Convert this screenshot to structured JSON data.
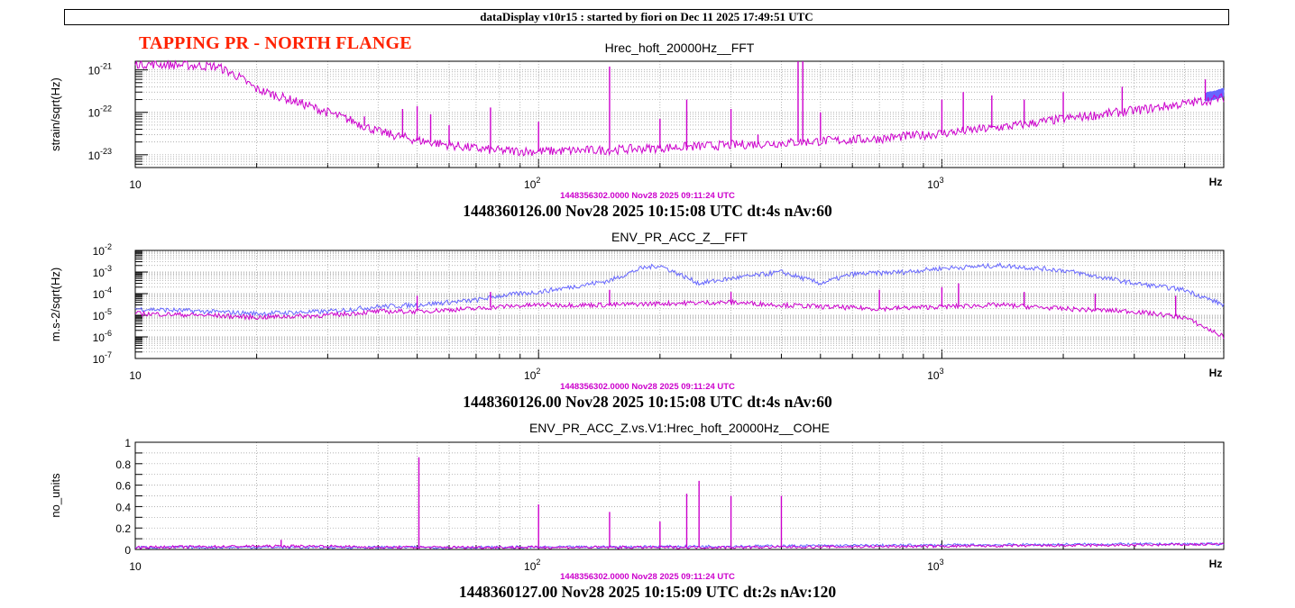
{
  "banner": "dataDisplay v10r15 : started by fiori on Dec 11 2025 17:49:51 UTC",
  "tag": {
    "text": "TAPPING PR - NORTH FLANGE",
    "color": "#ff2200"
  },
  "colors": {
    "reference": "#cc00cc",
    "current": "#6666ff",
    "grid": "#999999"
  },
  "chart_data": [
    {
      "type": "line",
      "title": "Hrec_hoft_20000Hz__FFT",
      "ylabel": "strain/sqrt(Hz)",
      "xunit": "Hz",
      "xscale": "log",
      "yscale": "log",
      "xlim": [
        10,
        5000
      ],
      "ylim": [
        5e-24,
        1.6e-21
      ],
      "grid": true,
      "xticks": [
        {
          "value": 10,
          "base": "10",
          "exp": ""
        },
        {
          "value": 100,
          "base": "10",
          "exp": "2"
        },
        {
          "value": 1000,
          "base": "10",
          "exp": "3"
        }
      ],
      "yticks": [
        {
          "value": 1e-21,
          "base": "10",
          "exp": "-21"
        },
        {
          "value": 1e-22,
          "base": "10",
          "exp": "-22"
        },
        {
          "value": 1e-23,
          "base": "10",
          "exp": "-23"
        }
      ],
      "reference_label": "1448356302.0000 Nov28 2025 09:11:24 UTC",
      "footer": "1448360126.00 Nov28 2025 10:15:08 UTC dt:4s nAv:60",
      "series": [
        {
          "role": "reference",
          "x": [
            10,
            13,
            16,
            18,
            20,
            25,
            30,
            35,
            40,
            50,
            60,
            70,
            80,
            100,
            120,
            150,
            200,
            300,
            400,
            500,
            700,
            1000,
            1500,
            2000,
            3000,
            4000,
            5000
          ],
          "y": [
            1.4e-21,
            1.3e-21,
            1.2e-21,
            7e-22,
            3.5e-22,
            1.8e-22,
            1e-22,
            6e-23,
            3.5e-23,
            2.2e-23,
            1.7e-23,
            1.4e-23,
            1.25e-23,
            1.2e-23,
            1.25e-23,
            1.3e-23,
            1.45e-23,
            1.7e-23,
            1.9e-23,
            2.1e-23,
            2.4e-23,
            3.2e-23,
            4.8e-23,
            7e-23,
            1.1e-22,
            1.6e-22,
            2.2e-22
          ],
          "peaks": [
            [
              37,
              8e-23
            ],
            [
              46,
              1.2e-22
            ],
            [
              50,
              1.4e-22
            ],
            [
              54,
              9e-23
            ],
            [
              60,
              5e-23
            ],
            [
              76,
              1.3e-22
            ],
            [
              100,
              6e-23
            ],
            [
              150,
              1.2e-21
            ],
            [
              200,
              7e-23
            ],
            [
              233,
              2e-22
            ],
            [
              300,
              1.2e-22
            ],
            [
              350,
              3e-23
            ],
            [
              440,
              1.6e-21
            ],
            [
              452,
              1.6e-21
            ],
            [
              500,
              1e-22
            ],
            [
              1000,
              2e-22
            ],
            [
              1130,
              3e-22
            ],
            [
              1330,
              2.5e-22
            ],
            [
              1600,
              2e-22
            ],
            [
              2000,
              3e-22
            ],
            [
              2800,
              4e-22
            ],
            [
              4500,
              6e-22
            ]
          ]
        },
        {
          "role": "current",
          "x": [
            4500,
            4800,
            5000
          ],
          "y": [
            2.3e-22,
            2.6e-22,
            3e-22
          ],
          "peaks": []
        }
      ]
    },
    {
      "type": "line",
      "title": "ENV_PR_ACC_Z__FFT",
      "ylabel": "m.s-2/sqrt(Hz)",
      "xunit": "Hz",
      "xscale": "log",
      "yscale": "log",
      "xlim": [
        10,
        5000
      ],
      "ylim": [
        1e-07,
        0.01
      ],
      "grid": true,
      "xticks": [
        {
          "value": 10,
          "base": "10",
          "exp": ""
        },
        {
          "value": 100,
          "base": "10",
          "exp": "2"
        },
        {
          "value": 1000,
          "base": "10",
          "exp": "3"
        }
      ],
      "yticks": [
        {
          "value": 0.01,
          "base": "10",
          "exp": "-2"
        },
        {
          "value": 0.001,
          "base": "10",
          "exp": "-3"
        },
        {
          "value": 0.0001,
          "base": "10",
          "exp": "-4"
        },
        {
          "value": 1e-05,
          "base": "10",
          "exp": "-5"
        },
        {
          "value": 1e-06,
          "base": "10",
          "exp": "-6"
        },
        {
          "value": 1e-07,
          "base": "10",
          "exp": "-7"
        }
      ],
      "reference_label": "1448356302.0000 Nov28 2025 09:11:24 UTC",
      "footer": "1448360126.00 Nov28 2025 10:15:08 UTC dt:4s nAv:60",
      "series": [
        {
          "role": "current",
          "x": [
            10,
            15,
            20,
            30,
            40,
            50,
            60,
            70,
            80,
            100,
            120,
            150,
            180,
            200,
            250,
            300,
            400,
            500,
            600,
            800,
            1000,
            1400,
            2000,
            3000,
            4000,
            5000
          ],
          "y": [
            2e-05,
            1.5e-05,
            1.2e-05,
            1.5e-05,
            2.5e-05,
            3e-05,
            4e-05,
            5e-05,
            8e-05,
            0.00012,
            0.0002,
            0.0004,
            0.0015,
            0.002,
            0.0003,
            0.0005,
            0.001,
            0.0003,
            0.0008,
            0.001,
            0.0015,
            0.002,
            0.0012,
            0.0003,
            0.00015,
            3e-05
          ],
          "peaks": []
        },
        {
          "role": "reference",
          "x": [
            10,
            15,
            20,
            30,
            40,
            50,
            60,
            70,
            80,
            100,
            120,
            150,
            200,
            300,
            400,
            500,
            700,
            1000,
            1400,
            2000,
            3000,
            4000,
            5000
          ],
          "y": [
            1.2e-05,
            1e-05,
            8e-06,
            1e-05,
            1.5e-05,
            1.5e-05,
            1.8e-05,
            2e-05,
            2.5e-05,
            3e-05,
            3e-05,
            3e-05,
            3.5e-05,
            4e-05,
            3e-05,
            2.5e-05,
            2e-05,
            2.5e-05,
            3e-05,
            2e-05,
            1.5e-05,
            8e-06,
            1e-06
          ],
          "peaks": [
            [
              50,
              8e-05
            ],
            [
              76,
              0.00012
            ],
            [
              150,
              0.00015
            ],
            [
              300,
              0.00012
            ],
            [
              700,
              0.00015
            ],
            [
              1000,
              0.0002
            ],
            [
              1100,
              0.0003
            ],
            [
              1600,
              0.00012
            ],
            [
              2400,
              0.0001
            ],
            [
              3800,
              8e-05
            ]
          ]
        }
      ]
    },
    {
      "type": "line",
      "title": "ENV_PR_ACC_Z.vs.V1:Hrec_hoft_20000Hz__COHE",
      "ylabel": "no_units",
      "xunit": "Hz",
      "xscale": "log",
      "yscale": "linear",
      "xlim": [
        10,
        5000
      ],
      "ylim": [
        0,
        1
      ],
      "grid": true,
      "xticks": [
        {
          "value": 10,
          "base": "10",
          "exp": ""
        },
        {
          "value": 100,
          "base": "10",
          "exp": "2"
        },
        {
          "value": 1000,
          "base": "10",
          "exp": "3"
        }
      ],
      "yticks": [
        {
          "value": 1,
          "base": "1",
          "exp": ""
        },
        {
          "value": 0.8,
          "base": "0.8",
          "exp": ""
        },
        {
          "value": 0.6,
          "base": "0.6",
          "exp": ""
        },
        {
          "value": 0.4,
          "base": "0.4",
          "exp": ""
        },
        {
          "value": 0.2,
          "base": "0.2",
          "exp": ""
        },
        {
          "value": 0,
          "base": "0",
          "exp": ""
        }
      ],
      "reference_label": "1448356302.0000 Nov28 2025 09:11:24 UTC",
      "footer": "1448360127.00 Nov28 2025 10:15:09 UTC dt:2s nAv:120",
      "series": [
        {
          "role": "current",
          "x": [
            10,
            100,
            300,
            1000,
            3000,
            5000
          ],
          "y": [
            0.02,
            0.02,
            0.03,
            0.04,
            0.05,
            0.05
          ],
          "peaks": []
        },
        {
          "role": "reference",
          "x": [
            10,
            20,
            30,
            40,
            50,
            100,
            300,
            1000,
            3000,
            5000
          ],
          "y": [
            0.02,
            0.03,
            0.03,
            0.02,
            0.02,
            0.02,
            0.02,
            0.03,
            0.04,
            0.05
          ],
          "peaks": [
            [
              23,
              0.09
            ],
            [
              50.5,
              0.86
            ],
            [
              100,
              0.42
            ],
            [
              150,
              0.35
            ],
            [
              200,
              0.26
            ],
            [
              233,
              0.52
            ],
            [
              250,
              0.64
            ],
            [
              300,
              0.5
            ],
            [
              400,
              0.5
            ]
          ]
        }
      ]
    }
  ]
}
